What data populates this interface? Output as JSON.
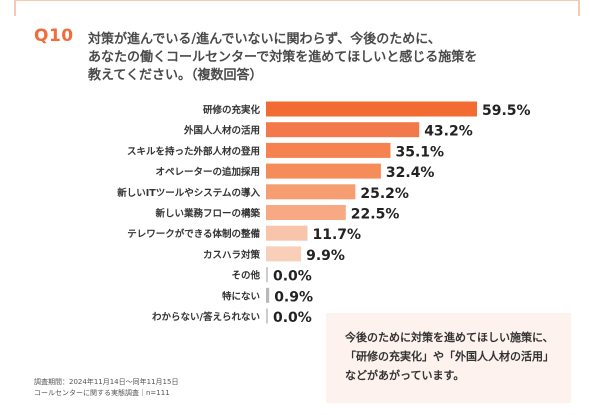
{
  "question": {
    "number": "Q10",
    "lines": [
      "対策が進んでいる/進んでいないに関わらず、今後のために、",
      "あなたの働くコールセンターで対策を進めてほしいと感じる施策を",
      "教えてください。（複数回答）"
    ]
  },
  "chart_data": {
    "type": "bar",
    "orientation": "horizontal",
    "categories": [
      "研修の充実化",
      "外国人人材の活用",
      "スキルを持った外部人材の登用",
      "オペレーターの追加採用",
      "新しいITツールやシステムの導入",
      "新しい業務フローの構築",
      "テレワークができる体制の整備",
      "カスハラ対策",
      "その他",
      "特にない",
      "わからない/答えられない"
    ],
    "values": [
      59.5,
      43.2,
      35.1,
      32.4,
      25.2,
      22.5,
      11.7,
      9.9,
      0.0,
      0.9,
      0.0
    ],
    "value_labels": [
      "59.5%",
      "43.2%",
      "35.1%",
      "32.4%",
      "25.2%",
      "22.5%",
      "11.7%",
      "9.9%",
      "0.0%",
      "0.9%",
      "0.0%"
    ],
    "bar_colors": [
      "#f26b33",
      "#f3794a",
      "#f4834f",
      "#f58c59",
      "#f69d72",
      "#f7a984",
      "#f8c4aa",
      "#f9cfba",
      "#cccccc",
      "#b8b8b8",
      "#cccccc"
    ],
    "xlim": [
      0,
      60
    ],
    "grid": false,
    "legend": "none"
  },
  "note": {
    "lines": [
      "今後のために対策を進めてほしい施策に、",
      "「研修の充実化」や「外国人人材の活用」",
      "などがあがっています。"
    ]
  },
  "footnote": {
    "lines": [
      "調査期間：2024年11月14日～同年11月15日",
      "コールセンターに関する実態調査｜n=111"
    ]
  },
  "colors": {
    "accent": "#f26b3a",
    "frame": "#f7c9b3",
    "note_bg": "#fdf2ed"
  }
}
